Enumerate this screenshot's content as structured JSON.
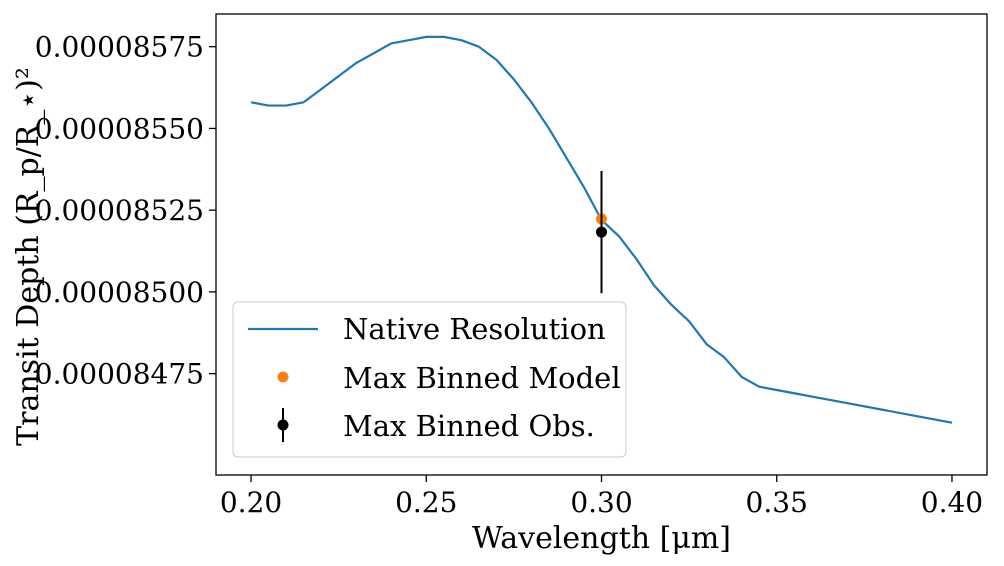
{
  "chart_data": {
    "type": "line",
    "xlabel": "Wavelength [μm]",
    "ylabel": "Transit Depth (R_p/R_⋆)²",
    "xlim": [
      0.19,
      0.41
    ],
    "ylim": [
      8.444e-05,
      8.585e-05
    ],
    "x_ticks": [
      0.2,
      0.25,
      0.3,
      0.35,
      0.4
    ],
    "x_tick_labels": [
      "0.20",
      "0.25",
      "0.30",
      "0.35",
      "0.40"
    ],
    "y_ticks": [
      8.475e-05,
      8.5e-05,
      8.525e-05,
      8.55e-05,
      8.575e-05
    ],
    "y_tick_labels": [
      "0.00008475",
      "0.00008500",
      "0.00008525",
      "0.00008550",
      "0.00008575"
    ],
    "grid": false,
    "legend_placement": "lower-left",
    "series": [
      {
        "name": "Native Resolution",
        "kind": "line",
        "color": "#1f77b4",
        "x": [
          0.2,
          0.205,
          0.21,
          0.215,
          0.22,
          0.225,
          0.23,
          0.235,
          0.24,
          0.245,
          0.25,
          0.255,
          0.26,
          0.265,
          0.27,
          0.275,
          0.28,
          0.285,
          0.29,
          0.295,
          0.3,
          0.305,
          0.31,
          0.315,
          0.32,
          0.325,
          0.33,
          0.335,
          0.34,
          0.345,
          0.35,
          0.355,
          0.36,
          0.37,
          0.38,
          0.39,
          0.4
        ],
        "y": [
          8.558e-05,
          8.557e-05,
          8.557e-05,
          8.558e-05,
          8.562e-05,
          8.566e-05,
          8.57e-05,
          8.573e-05,
          8.576e-05,
          8.577e-05,
          8.578e-05,
          8.578e-05,
          8.577e-05,
          8.575e-05,
          8.571e-05,
          8.565e-05,
          8.558e-05,
          8.55e-05,
          8.541e-05,
          8.532e-05,
          8.522e-05,
          8.517e-05,
          8.51e-05,
          8.502e-05,
          8.496e-05,
          8.491e-05,
          8.484e-05,
          8.48e-05,
          8.474e-05,
          8.471e-05,
          8.47e-05,
          8.469e-05,
          8.468e-05,
          8.466e-05,
          8.464e-05,
          8.462e-05,
          8.46e-05
        ]
      },
      {
        "name": "Max Binned Model",
        "kind": "point",
        "color": "#ff7f0e",
        "x": [
          0.3
        ],
        "y": [
          8.5223e-05
        ]
      },
      {
        "name": "Max Binned Obs.",
        "kind": "errorbar",
        "color": "#000000",
        "x": [
          0.3
        ],
        "y": [
          8.5183e-05
        ],
        "yerr": [
          1.87e-07
        ]
      }
    ]
  }
}
